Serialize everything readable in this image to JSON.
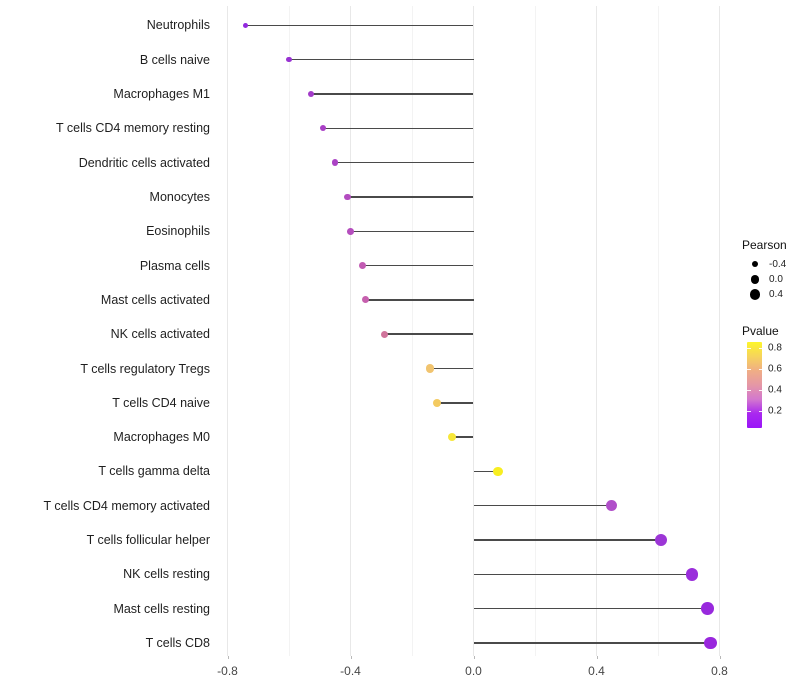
{
  "chart_data": {
    "type": "lollipop",
    "title": "",
    "xlabel": "",
    "ylabel": "",
    "xlim": [
      -0.83,
      0.88
    ],
    "x_major_ticks": [
      -0.8,
      -0.4,
      0.0,
      0.4,
      0.8
    ],
    "x_tick_labels": [
      "-0.8",
      "-0.4",
      "0.0",
      "0.4",
      "0.8"
    ],
    "x_grid_values": [
      -0.8,
      -0.6,
      -0.4,
      -0.2,
      0.0,
      0.2,
      0.4,
      0.6,
      0.8
    ],
    "grid": "vertical, light gray, every 0.2",
    "legend_position": "right",
    "points": [
      {
        "label": "Neutrophils",
        "pearson": -0.74,
        "pvalue": 0.01,
        "color": "#9229DE"
      },
      {
        "label": "B cells naive",
        "pearson": -0.6,
        "pvalue": 0.03,
        "color": "#9832D2"
      },
      {
        "label": "Macrophages M1",
        "pearson": -0.53,
        "pvalue": 0.06,
        "color": "#A33BC9"
      },
      {
        "label": "T cells CD4 memory resting",
        "pearson": -0.49,
        "pvalue": 0.09,
        "color": "#A940C6"
      },
      {
        "label": "Dendritic cells activated",
        "pearson": -0.45,
        "pvalue": 0.1,
        "color": "#AB43C5"
      },
      {
        "label": "Monocytes",
        "pearson": -0.41,
        "pvalue": 0.14,
        "color": "#B34CC0"
      },
      {
        "label": "Eosinophils",
        "pearson": -0.4,
        "pvalue": 0.15,
        "color": "#B54EBE"
      },
      {
        "label": "Plasma cells",
        "pearson": -0.36,
        "pvalue": 0.22,
        "color": "#C25BB3"
      },
      {
        "label": "Mast cells activated",
        "pearson": -0.35,
        "pvalue": 0.24,
        "color": "#C660AE"
      },
      {
        "label": "NK cells activated",
        "pearson": -0.29,
        "pvalue": 0.33,
        "color": "#D0749B"
      },
      {
        "label": "T cells regulatory  Tregs",
        "pearson": -0.14,
        "pvalue": 0.6,
        "color": "#F1C46F"
      },
      {
        "label": "T cells CD4 naive",
        "pearson": -0.12,
        "pvalue": 0.62,
        "color": "#F3CA61"
      },
      {
        "label": "Macrophages M0",
        "pearson": -0.07,
        "pvalue": 0.76,
        "color": "#F7E73A"
      },
      {
        "label": "T cells gamma delta",
        "pearson": 0.08,
        "pvalue": 0.8,
        "color": "#F8EE21"
      },
      {
        "label": "T cells CD4 memory activated",
        "pearson": 0.45,
        "pvalue": 0.12,
        "color": "#B04FC9"
      },
      {
        "label": "T cells follicular helper",
        "pearson": 0.61,
        "pvalue": 0.05,
        "color": "#9C36D6"
      },
      {
        "label": "NK cells resting",
        "pearson": 0.71,
        "pvalue": 0.03,
        "color": "#9A2EDB"
      },
      {
        "label": "Mast cells resting",
        "pearson": 0.76,
        "pvalue": 0.02,
        "color": "#9829DD"
      },
      {
        "label": "T cells CD8",
        "pearson": 0.77,
        "pvalue": 0.01,
        "color": "#9927DD"
      }
    ]
  },
  "legend_size": {
    "title": "Pearson",
    "entries": [
      {
        "label": "-0.4",
        "value": -0.4
      },
      {
        "label": "0.0",
        "value": 0.0
      },
      {
        "label": "0.4",
        "value": 0.4
      }
    ]
  },
  "legend_color": {
    "title": "Pvalue",
    "tick_labels": [
      "0.8",
      "0.6",
      "0.4",
      "0.2"
    ],
    "gradient_top_to_bottom": [
      "#FDF52A",
      "#F6D45C",
      "#F0AE85",
      "#E597A6",
      "#D378CE",
      "#A928EF",
      "#9A15F8"
    ]
  },
  "colors": {
    "background": "#FFFFFF",
    "grid_major": "#E8E8E8",
    "grid_minor": "#F3F3F3",
    "stem": "#4A4A4A",
    "axis_text": "#474747",
    "category_text": "#1F1F1F",
    "legend_dot": "#000000"
  }
}
